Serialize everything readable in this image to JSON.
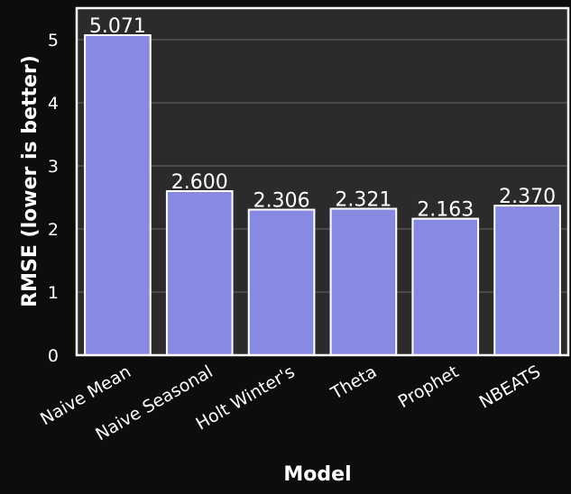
{
  "colors": {
    "page_background": "#0d0d0d",
    "plot_background": "#2b2b2b",
    "bar_fill": "#878ae0",
    "bar_edge": "#ffffff",
    "grid": "#5c5c5c",
    "text": "#ffffff"
  },
  "chart_data": {
    "type": "bar",
    "categories": [
      "Naive Mean",
      "Naive Seasonal",
      "Holt Winter's",
      "Theta",
      "Prophet",
      "NBEATS"
    ],
    "values": [
      5.071,
      2.6,
      2.306,
      2.321,
      2.163,
      2.37
    ],
    "value_labels": [
      "5.071",
      "2.600",
      "2.306",
      "2.321",
      "2.163",
      "2.370"
    ],
    "xlabel": "Model",
    "ylabel": "RMSE (lower is better)",
    "ylim": [
      0,
      5.5
    ],
    "yticks": [
      0,
      1,
      2,
      3,
      4,
      5
    ],
    "grid": true,
    "legend": false
  }
}
